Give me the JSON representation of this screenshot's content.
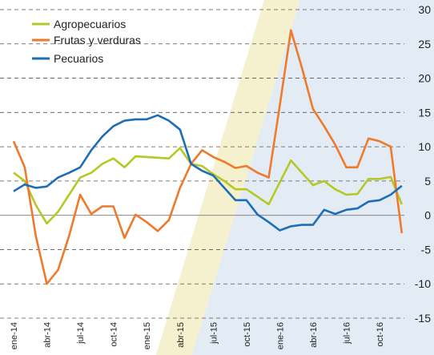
{
  "chart_data": {
    "type": "line",
    "categories": [
      "ene-14",
      null,
      null,
      "abr-14",
      null,
      null,
      "jul-14",
      null,
      null,
      "oct-14",
      null,
      null,
      "ene-15",
      null,
      null,
      "abr-15",
      null,
      null,
      "jul-15",
      null,
      null,
      "oct-15",
      null,
      null,
      "ene-16",
      null,
      null,
      "abr-16",
      null,
      null,
      "jul-16",
      null,
      null,
      "oct-16",
      null,
      null
    ],
    "series": [
      {
        "name": "Agropecuarios",
        "color": "#b5c924",
        "values": [
          6.2,
          5,
          1.5,
          -1.2,
          0.5,
          3,
          5.5,
          6.2,
          7.5,
          8.3,
          7,
          8.6,
          8.5,
          8.4,
          8.3,
          9.8,
          7.5,
          7.2,
          6,
          5,
          3.8,
          3.8,
          2.7,
          1.6,
          4.8,
          8,
          6.2,
          4.4,
          5,
          3.8,
          3,
          3.1,
          5.3,
          5.3,
          5.6,
          1.6
        ]
      },
      {
        "name": "Frutas y verduras",
        "color": "#ee7a2c",
        "values": [
          10.8,
          7,
          -3,
          -10,
          -8,
          -3,
          3,
          0.2,
          1.3,
          1.3,
          -3.3,
          0.1,
          -1,
          -2.3,
          -0.7,
          4,
          7.5,
          9.5,
          8.5,
          7.8,
          6.9,
          7.2,
          6.2,
          5.5,
          16,
          27,
          21.5,
          15.5,
          13,
          10.3,
          7,
          7,
          11.2,
          10.8,
          10,
          -2.6
        ]
      },
      {
        "name": "Pecuarios",
        "color": "#1f6db5",
        "values": [
          3.5,
          4.5,
          4,
          4.2,
          5.5,
          6.2,
          7,
          9.5,
          11.5,
          13,
          13.8,
          14,
          14,
          14.6,
          13.8,
          12.5,
          7.5,
          6.5,
          5.8,
          4,
          2.2,
          2.2,
          0.1,
          -1,
          -2.2,
          -1.6,
          -1.4,
          -1.4,
          0.8,
          0.2,
          0.8,
          1,
          2,
          2.2,
          3,
          4.3
        ]
      }
    ],
    "ylim": [
      -15,
      30
    ],
    "yticks": [
      -15,
      -10,
      -5,
      0,
      5,
      10,
      15,
      20,
      25,
      30
    ],
    "grid": true
  }
}
